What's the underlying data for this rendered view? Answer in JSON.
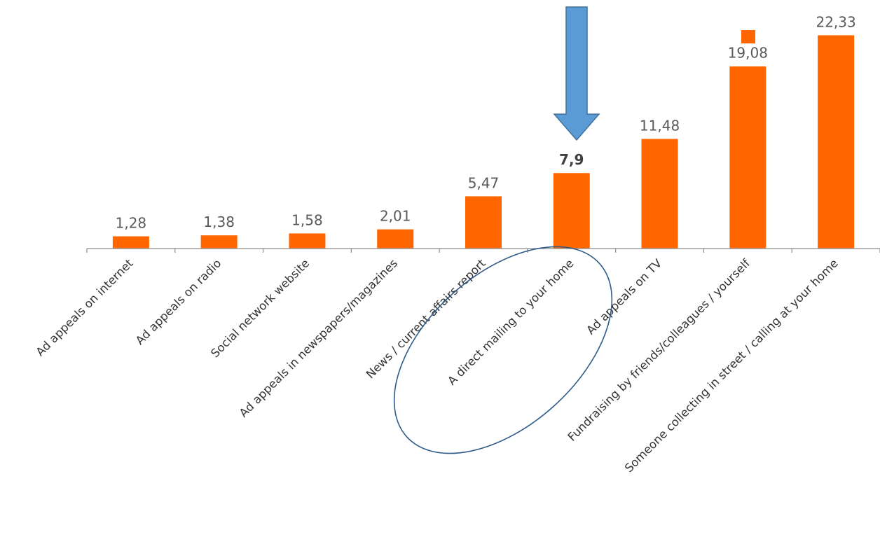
{
  "chart_data": {
    "type": "bar",
    "categories": [
      "Ad appeals on internet",
      "Ad appeals on radio",
      "Social network website",
      "Ad appeals in newspapers/magazines",
      "News / current affairs report",
      "A direct mailing to your home",
      "Ad appeals on TV",
      "Fundraising by friends/colleagues / yourself",
      "Someone collecting in street / calling at your home"
    ],
    "values": [
      1.28,
      1.38,
      1.58,
      2.01,
      5.47,
      7.9,
      11.48,
      19.08,
      22.33
    ],
    "value_labels": [
      "1,28",
      "1,38",
      "1,58",
      "2,01",
      "5,47",
      "7,9",
      "11,48",
      "19,08",
      "22,33"
    ],
    "highlighted_category": "A direct mailing to your home",
    "ylim": [
      0,
      25
    ],
    "grid": false,
    "legend": "top-right",
    "title": "",
    "xlabel": "",
    "ylabel": "",
    "bar_color": "#FF6600",
    "annotation_colors": {
      "arrow_fill": "#5B9BD5",
      "arrow_stroke": "#41719C",
      "ellipse_stroke": "#2E5B8A"
    }
  }
}
